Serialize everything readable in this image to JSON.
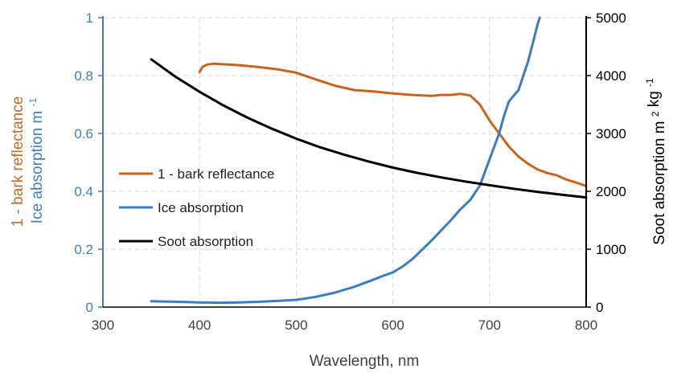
{
  "chart_data": {
    "type": "line",
    "title": "",
    "xlabel": "Wavelength, nm",
    "ylabel_left_top": "1 - bark reflectance",
    "ylabel_left_bottom": "Ice absorption",
    "ylabel_left_bottom_unit": "m",
    "ylabel_left_bottom_unit_exp": "-1",
    "ylabel_right": "Soot absorption",
    "ylabel_right_unit1": "m",
    "ylabel_right_unit1_exp": "2",
    "ylabel_right_unit2": "kg",
    "ylabel_right_unit2_exp": "-1",
    "xlim": [
      300,
      800
    ],
    "ylim_left": [
      0,
      1
    ],
    "ylim_right": [
      0,
      5000
    ],
    "xticks": [
      "300",
      "400",
      "500",
      "600",
      "700",
      "800"
    ],
    "yticks_left": [
      "0",
      "0.2",
      "0.4",
      "0.6",
      "0.8",
      "1"
    ],
    "yticks_right": [
      "0",
      "1000",
      "2000",
      "3000",
      "4000",
      "5000"
    ],
    "grid": true,
    "legend_position": "center-left",
    "colors": {
      "left_axis_blue": "#3f7fc0",
      "left_axis_orange": "#c46a2a",
      "axis_black": "#000000"
    },
    "series": [
      {
        "name": "1 - bark reflectance",
        "axis": "left",
        "color": "#c8641e",
        "x": [
          400,
          403,
          408,
          415,
          425,
          440,
          460,
          480,
          500,
          520,
          540,
          560,
          580,
          600,
          620,
          640,
          650,
          660,
          670,
          680,
          690,
          700,
          710,
          720,
          730,
          740,
          750,
          760,
          770,
          780,
          790,
          800
        ],
        "y": [
          0.812,
          0.83,
          0.838,
          0.841,
          0.839,
          0.836,
          0.83,
          0.822,
          0.81,
          0.787,
          0.765,
          0.75,
          0.745,
          0.738,
          0.733,
          0.73,
          0.733,
          0.733,
          0.737,
          0.731,
          0.7,
          0.645,
          0.6,
          0.555,
          0.52,
          0.495,
          0.475,
          0.463,
          0.455,
          0.44,
          0.43,
          0.418
        ]
      },
      {
        "name": "Ice absorption",
        "axis": "left",
        "color": "#3a7dc4",
        "x": [
          350,
          380,
          400,
          420,
          440,
          460,
          480,
          500,
          520,
          540,
          560,
          580,
          590,
          600,
          610,
          620,
          640,
          660,
          670,
          680,
          690,
          700,
          710,
          715,
          720,
          725,
          730,
          740,
          750,
          752
        ],
        "y": [
          0.02,
          0.018,
          0.016,
          0.015,
          0.016,
          0.018,
          0.021,
          0.025,
          0.035,
          0.05,
          0.07,
          0.095,
          0.108,
          0.12,
          0.14,
          0.165,
          0.23,
          0.3,
          0.338,
          0.37,
          0.42,
          0.51,
          0.6,
          0.66,
          0.71,
          0.73,
          0.75,
          0.85,
          0.98,
          1.0
        ]
      },
      {
        "name": "Soot absorption",
        "axis": "right",
        "color": "#000000",
        "x": [
          350,
          375,
          400,
          425,
          450,
          475,
          500,
          525,
          550,
          575,
          600,
          625,
          650,
          675,
          700,
          725,
          750,
          775,
          800
        ],
        "y": [
          4280,
          3980,
          3720,
          3480,
          3270,
          3080,
          2910,
          2760,
          2630,
          2515,
          2410,
          2320,
          2240,
          2170,
          2105,
          2045,
          1990,
          1940,
          1895
        ]
      }
    ]
  }
}
